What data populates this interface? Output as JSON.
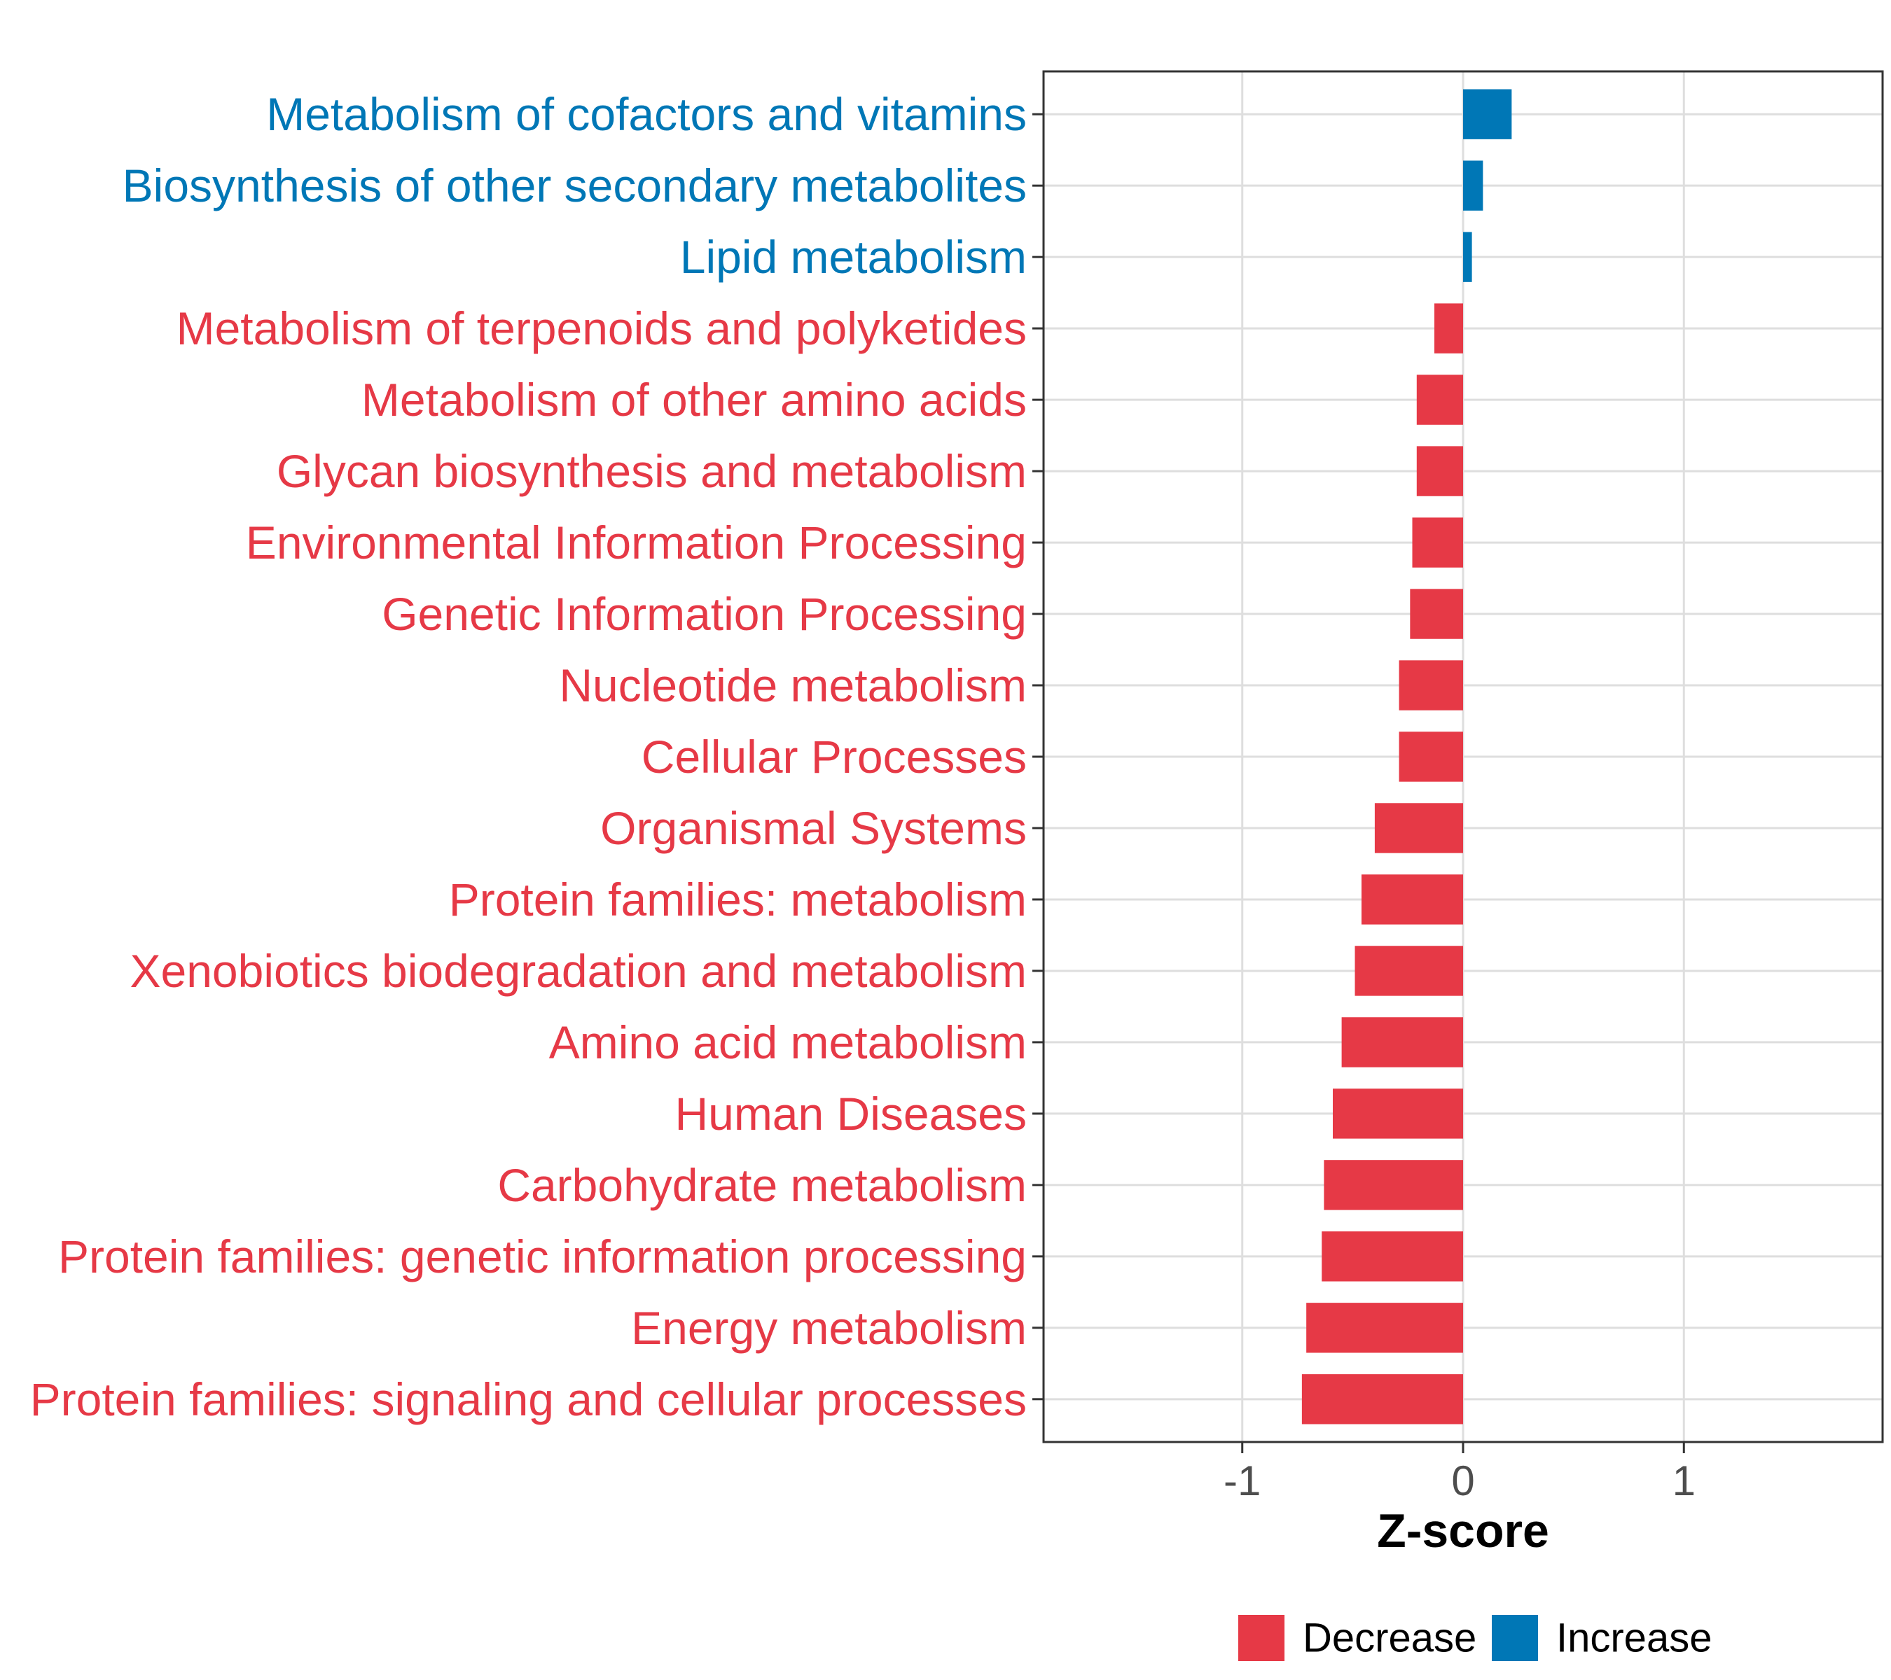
{
  "chart_data": {
    "type": "bar",
    "orientation": "horizontal",
    "title": "",
    "xlabel": "Z-score",
    "ylabel": "",
    "xlim": [
      -1.9,
      1.9
    ],
    "x_ticks": [
      {
        "value": -1,
        "label": "-1"
      },
      {
        "value": 0,
        "label": "0"
      },
      {
        "value": 1,
        "label": "1"
      }
    ],
    "grid": true,
    "categories": [
      "Metabolism of cofactors and vitamins",
      "Biosynthesis of other secondary metabolites",
      "Lipid metabolism",
      "Metabolism of terpenoids and polyketides",
      "Metabolism of other amino acids",
      "Glycan biosynthesis and metabolism",
      "Environmental Information Processing",
      "Genetic Information Processing",
      "Nucleotide metabolism",
      "Cellular Processes",
      "Organismal Systems",
      "Protein families: metabolism",
      "Xenobiotics biodegradation and metabolism",
      "Amino acid metabolism",
      "Human Diseases",
      "Carbohydrate metabolism",
      "Protein families: genetic information processing",
      "Energy metabolism",
      "Protein families: signaling and cellular processes"
    ],
    "values": [
      0.22,
      0.09,
      0.04,
      -0.13,
      -0.21,
      -0.21,
      -0.23,
      -0.24,
      -0.29,
      -0.29,
      -0.4,
      -0.46,
      -0.49,
      -0.55,
      -0.59,
      -0.63,
      -0.64,
      -0.71,
      -0.73
    ],
    "legend": {
      "position": "bottom",
      "items": [
        {
          "label": "Decrease",
          "color": "#E63946"
        },
        {
          "label": "Increase",
          "color": "#0077B6"
        }
      ]
    },
    "colors": {
      "decrease": "#E63946",
      "increase": "#0077B6"
    }
  }
}
